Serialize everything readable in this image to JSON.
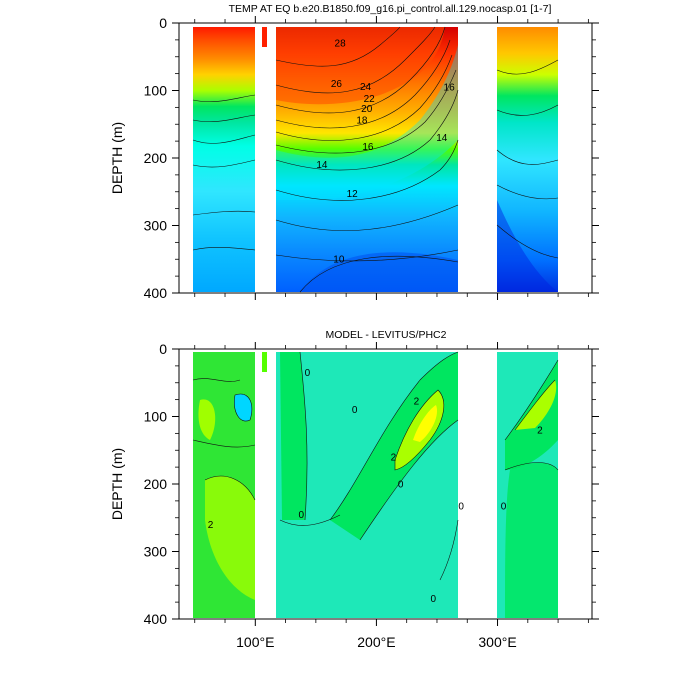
{
  "chart_data": [
    {
      "type": "heatmap",
      "title": "TEMP AT EQ b.e20.B1850.f09_g16.pi_control.all.129.nocasp.01 [1-7]",
      "xlabel": "",
      "ylabel": "DEPTH (m)",
      "xlim": [
        37,
        378
      ],
      "ylim": [
        400,
        0
      ],
      "y_inverted": true,
      "x_ticks": [
        {
          "value": 100,
          "label": "100°E"
        },
        {
          "value": 200,
          "label": "200°E"
        },
        {
          "value": 300,
          "label": "300°E"
        }
      ],
      "y_ticks": [
        {
          "value": 0,
          "label": "0"
        },
        {
          "value": 100,
          "label": "100"
        },
        {
          "value": 200,
          "label": "200"
        },
        {
          "value": 300,
          "label": "300"
        },
        {
          "value": 400,
          "label": "400"
        }
      ],
      "land_gaps_lon": [
        [
          98,
          117
        ],
        [
          279,
          315
        ]
      ],
      "contour_labels": [
        {
          "lon": 170,
          "depth": 35,
          "text": "28"
        },
        {
          "lon": 167,
          "depth": 95,
          "text": "26"
        },
        {
          "lon": 191,
          "depth": 99,
          "text": "24"
        },
        {
          "lon": 194,
          "depth": 117,
          "text": "22"
        },
        {
          "lon": 192,
          "depth": 132,
          "text": "20"
        },
        {
          "lon": 188,
          "depth": 149,
          "text": "18"
        },
        {
          "lon": 193,
          "depth": 188,
          "text": "16"
        },
        {
          "lon": 155,
          "depth": 215,
          "text": "14"
        },
        {
          "lon": 180,
          "depth": 258,
          "text": "12"
        },
        {
          "lon": 169,
          "depth": 355,
          "text": "10"
        },
        {
          "lon": 260,
          "depth": 100,
          "text": "16"
        },
        {
          "lon": 254,
          "depth": 175,
          "text": "14"
        }
      ]
    },
    {
      "type": "heatmap",
      "title": "MODEL - LEVITUS/PHC2",
      "xlabel": "",
      "ylabel": "DEPTH (m)",
      "xlim": [
        37,
        378
      ],
      "ylim": [
        400,
        0
      ],
      "y_inverted": true,
      "x_ticks": [
        {
          "value": 100,
          "label": "100°E"
        },
        {
          "value": 200,
          "label": "200°E"
        },
        {
          "value": 300,
          "label": "300°E"
        }
      ],
      "y_ticks": [
        {
          "value": 0,
          "label": "0"
        },
        {
          "value": 100,
          "label": "100"
        },
        {
          "value": 200,
          "label": "200"
        },
        {
          "value": 300,
          "label": "300"
        },
        {
          "value": 400,
          "label": "400"
        }
      ],
      "land_gaps_lon": [
        [
          98,
          117
        ],
        [
          279,
          313
        ]
      ],
      "contour_labels": [
        {
          "lon": 143,
          "depth": 40,
          "text": "0"
        },
        {
          "lon": 233,
          "depth": 82,
          "text": "2"
        },
        {
          "lon": 182,
          "depth": 95,
          "text": "0"
        },
        {
          "lon": 214,
          "depth": 165,
          "text": "2"
        },
        {
          "lon": 220,
          "depth": 205,
          "text": "0"
        },
        {
          "lon": 63,
          "depth": 265,
          "text": "2"
        },
        {
          "lon": 335,
          "depth": 125,
          "text": "2"
        },
        {
          "lon": 138,
          "depth": 250,
          "text": "0"
        },
        {
          "lon": 270,
          "depth": 238,
          "text": "0"
        },
        {
          "lon": 305,
          "depth": 238,
          "text": "0"
        },
        {
          "lon": 247,
          "depth": 375,
          "text": "0"
        }
      ]
    }
  ]
}
